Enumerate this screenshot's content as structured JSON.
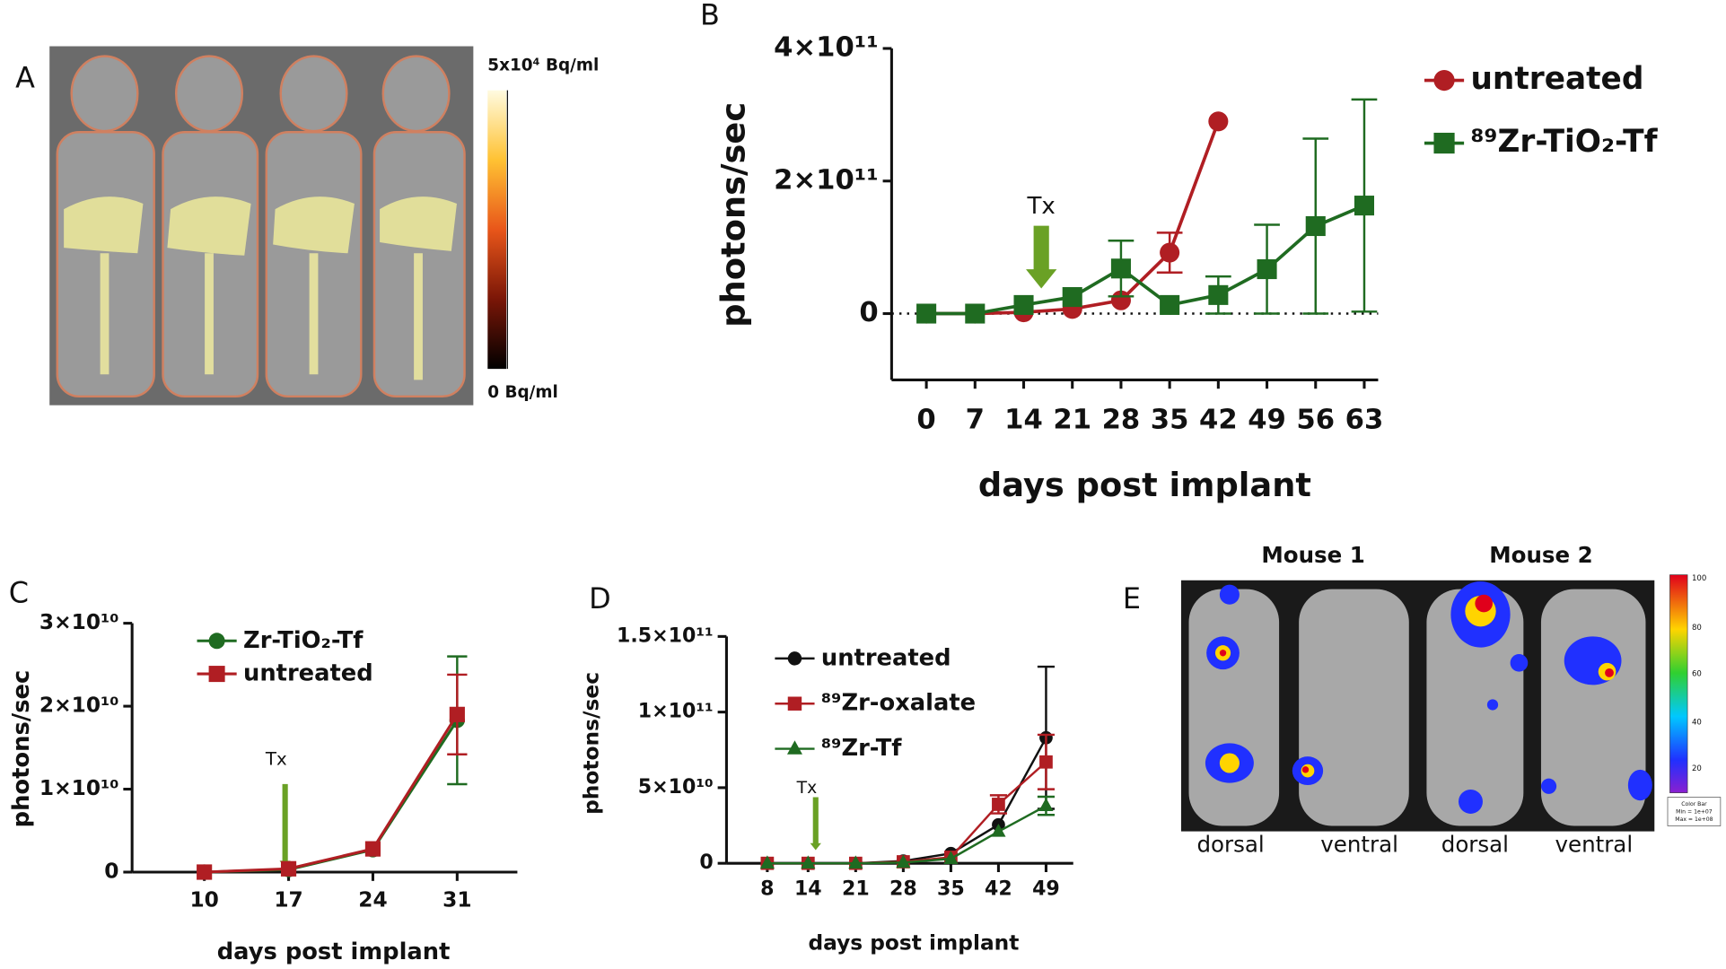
{
  "chart_data": [
    {
      "type": "line",
      "panel": "B",
      "xlabel": "days post implant",
      "ylabel": "photons/sec",
      "xlim": [
        -5,
        65
      ],
      "xticks": [
        0,
        7,
        14,
        21,
        28,
        35,
        42,
        49,
        56,
        63
      ],
      "ylim": [
        -100000000000.0,
        400000000000.0
      ],
      "yticks": [
        {
          "value": 0,
          "label": "0"
        },
        {
          "value": 200000000000.0,
          "label": "2×10¹¹"
        },
        {
          "value": 400000000000.0,
          "label": "4×10¹¹"
        }
      ],
      "zero_line": true,
      "legend": "right",
      "annotation": "Tx",
      "series": [
        {
          "name": "untreated",
          "color": "#b01e23",
          "marker": "circle",
          "x": [
            0,
            7,
            14,
            21,
            28,
            35,
            42
          ],
          "values": [
            0,
            0,
            2000000000.0,
            7000000000.0,
            20000000000.0,
            92000000000.0,
            290000000000.0
          ],
          "errors": [
            null,
            null,
            null,
            null,
            null,
            30000000000.0,
            null
          ]
        },
        {
          "name": "⁸⁹Zr-TiO₂-Tf",
          "color": "#1f6b21",
          "marker": "square",
          "x": [
            0,
            7,
            14,
            21,
            28,
            35,
            42,
            49,
            56,
            63
          ],
          "values": [
            0,
            0,
            13000000000.0,
            25000000000.0,
            68000000000.0,
            13000000000.0,
            28000000000.0,
            67000000000.0,
            132000000000.0,
            163000000000.0
          ],
          "errors": [
            null,
            null,
            null,
            null,
            42000000000.0,
            null,
            28000000000.0,
            67000000000.0,
            132000000000.0,
            160000000000.0
          ]
        }
      ]
    },
    {
      "type": "line",
      "panel": "C",
      "xlabel": "days post implant",
      "ylabel": "photons/sec",
      "xlim": [
        4,
        36
      ],
      "xticks": [
        10,
        17,
        24,
        31
      ],
      "ylim": [
        0,
        30000000000.0
      ],
      "yticks": [
        {
          "value": 0,
          "label": "0"
        },
        {
          "value": 10000000000.0,
          "label": "1×10¹⁰"
        },
        {
          "value": 20000000000.0,
          "label": "2×10¹⁰"
        },
        {
          "value": 30000000000.0,
          "label": "3×10¹⁰"
        }
      ],
      "zero_line": false,
      "legend": "upper-left",
      "annotation": "Tx",
      "series": [
        {
          "name": "Zr-TiO₂-Tf",
          "color": "#1f6b21",
          "marker": "circle",
          "x": [
            10,
            17,
            24,
            31
          ],
          "values": [
            0,
            300000000.0,
            2700000000.0,
            18300000000.0
          ],
          "errors": [
            null,
            null,
            null,
            7700000000.0
          ]
        },
        {
          "name": "untreated",
          "color": "#b01e23",
          "marker": "square",
          "x": [
            10,
            17,
            24,
            31
          ],
          "values": [
            0,
            400000000.0,
            2800000000.0,
            19000000000.0
          ],
          "errors": [
            null,
            null,
            null,
            4800000000.0
          ]
        }
      ]
    },
    {
      "type": "line",
      "panel": "D",
      "xlabel": "days post implant",
      "ylabel": "photons/sec",
      "xlim": [
        2,
        53
      ],
      "xticks": [
        8,
        14,
        21,
        28,
        35,
        42,
        49
      ],
      "ylim": [
        0,
        150000000000.0
      ],
      "yticks": [
        {
          "value": 0,
          "label": "0"
        },
        {
          "value": 50000000000.0,
          "label": "5×10¹⁰"
        },
        {
          "value": 100000000000.0,
          "label": "1×10¹¹"
        },
        {
          "value": 150000000000.0,
          "label": "1.5×10¹¹"
        }
      ],
      "zero_line": false,
      "legend": "upper-left",
      "annotation": "Tx",
      "series": [
        {
          "name": "untreated",
          "color": "#111111",
          "marker": "circle",
          "x": [
            8,
            14,
            21,
            28,
            35,
            42,
            49
          ],
          "values": [
            0,
            0,
            0,
            1500000000.0,
            6500000000.0,
            25500000000.0,
            83000000000.0
          ],
          "errors": [
            null,
            null,
            null,
            null,
            null,
            null,
            47000000000.0
          ]
        },
        {
          "name": "⁸⁹Zr-oxalate",
          "color": "#b01e23",
          "marker": "square",
          "x": [
            8,
            14,
            21,
            28,
            35,
            42,
            49
          ],
          "values": [
            0,
            0,
            0,
            1000000000.0,
            4000000000.0,
            39000000000.0,
            67000000000.0
          ],
          "errors": [
            null,
            null,
            null,
            null,
            null,
            6000000000.0,
            18000000000.0
          ]
        },
        {
          "name": "⁸⁹Zr-Tf",
          "color": "#1f6b21",
          "marker": "triangle",
          "x": [
            8,
            14,
            21,
            28,
            35,
            42,
            49
          ],
          "values": [
            0,
            0,
            0,
            500000000.0,
            3000000000.0,
            21000000000.0,
            38000000000.0
          ],
          "errors": [
            null,
            null,
            null,
            null,
            null,
            null,
            6000000000.0
          ]
        }
      ]
    }
  ],
  "images": {
    "A": {
      "panel": "A",
      "scale_max": "5x10⁴ Bq/ml",
      "scale_min": "0 Bq/ml"
    },
    "E": {
      "panel": "E",
      "mice": [
        "Mouse 1",
        "Mouse 2"
      ],
      "views": [
        "dorsal",
        "ventral",
        "dorsal",
        "ventral"
      ],
      "colorbar_ticks": [
        "100",
        "80",
        "60",
        "40",
        "20"
      ],
      "colorbar_caption": [
        "Color Bar",
        "Min = 1e+07",
        "Max = 1e+08"
      ]
    }
  }
}
